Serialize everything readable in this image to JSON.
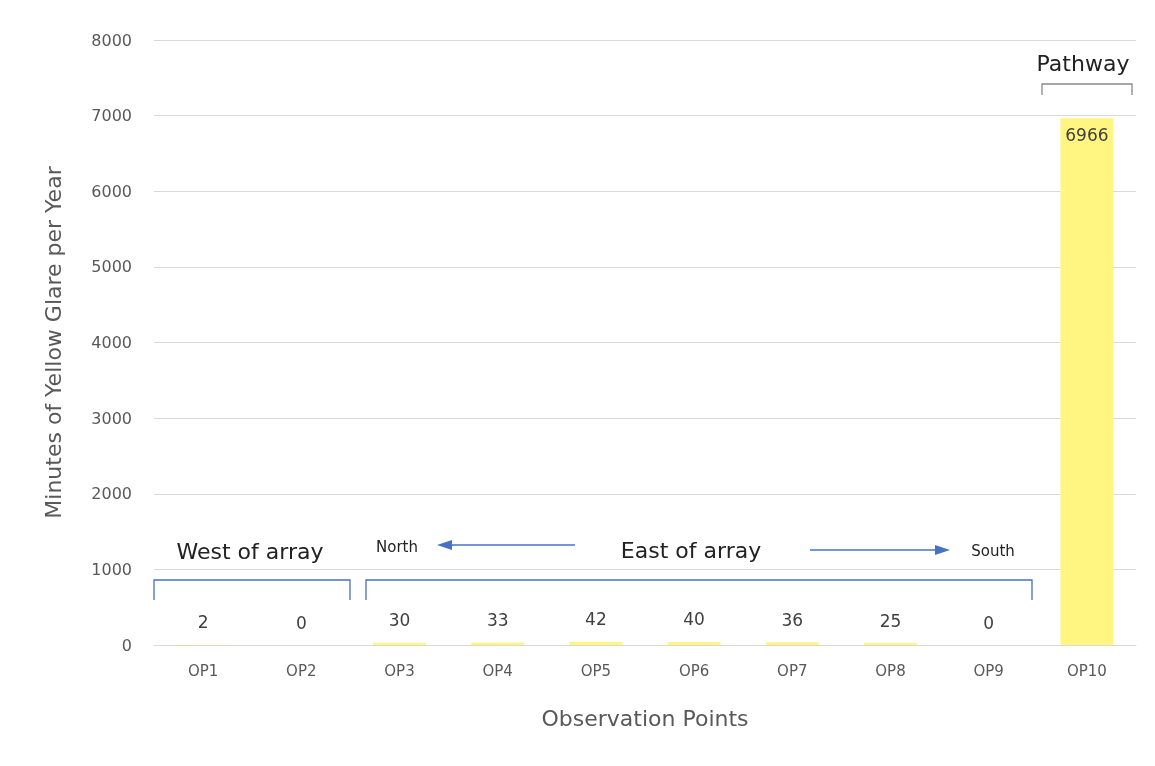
{
  "chart_data": {
    "type": "bar",
    "xlabel": "Observation Points",
    "ylabel": "Minutes of Yellow Glare per Year",
    "categories": [
      "OP1",
      "OP2",
      "OP3",
      "OP4",
      "OP5",
      "OP6",
      "OP7",
      "OP8",
      "OP9",
      "OP10"
    ],
    "values": [
      2,
      0,
      30,
      33,
      42,
      40,
      36,
      25,
      0,
      6966
    ],
    "color": "#fff580",
    "ylim": [
      0,
      8000
    ],
    "yticks": [
      0,
      1000,
      2000,
      3000,
      4000,
      5000,
      6000,
      7000,
      8000
    ],
    "grid": "y",
    "data_labels": true,
    "annotations": [
      "West of array",
      "North",
      "East of array",
      "South",
      "Pathway"
    ]
  }
}
